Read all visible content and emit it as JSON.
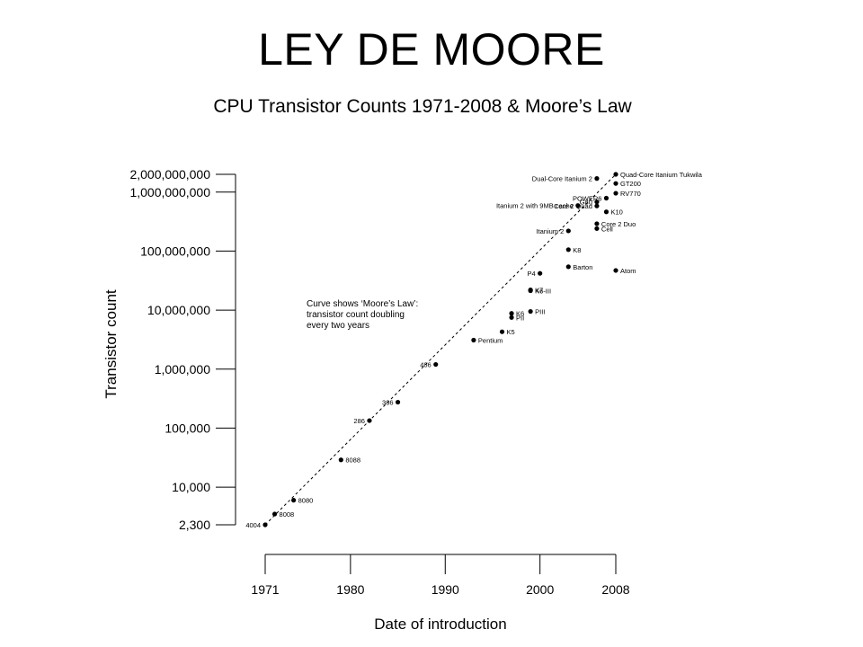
{
  "slide": {
    "title": "LEY DE MOORE"
  },
  "chart_data": {
    "type": "scatter",
    "title": "CPU Transistor Counts 1971-2008 & Moore’s Law",
    "xlabel": "Date of introduction",
    "ylabel": "Transistor count",
    "xscale": "linear",
    "yscale": "log",
    "xlim": [
      1971,
      2008
    ],
    "ylim": [
      2300,
      2000000000
    ],
    "x_ticks": [
      1971,
      1980,
      1990,
      2000,
      2008
    ],
    "x_tick_labels": [
      "1971",
      "1980",
      "1990",
      "2000",
      "2008"
    ],
    "y_ticks": [
      2300,
      10000,
      100000,
      1000000,
      10000000,
      100000000,
      1000000000,
      2000000000
    ],
    "y_tick_labels": [
      "2,300",
      "10,000",
      "100,000",
      "1,000,000",
      "10,000,000",
      "100,000,000",
      "1,000,000,000",
      "2,000,000,000"
    ],
    "grid": false,
    "annotation": [
      "Curve shows ‘Moore’s Law’:",
      "transistor count doubling",
      "every two years"
    ],
    "trend_line": {
      "style": "dashed",
      "from": [
        1971,
        2300
      ],
      "to": [
        2008,
        2000000000
      ]
    },
    "points": [
      {
        "label": "4004",
        "x": 1971,
        "y": 2300,
        "side": "left"
      },
      {
        "label": "8008",
        "x": 1972,
        "y": 3500,
        "side": "right"
      },
      {
        "label": "8080",
        "x": 1974,
        "y": 6000,
        "side": "right"
      },
      {
        "label": "8088",
        "x": 1979,
        "y": 29000,
        "side": "right"
      },
      {
        "label": "286",
        "x": 1982,
        "y": 134000,
        "side": "left"
      },
      {
        "label": "386",
        "x": 1985,
        "y": 275000,
        "side": "left"
      },
      {
        "label": "486",
        "x": 1989,
        "y": 1200000,
        "side": "left"
      },
      {
        "label": "Pentium",
        "x": 1993,
        "y": 3100000,
        "side": "right"
      },
      {
        "label": "K5",
        "x": 1996,
        "y": 4300000,
        "side": "right"
      },
      {
        "label": "K6",
        "x": 1997,
        "y": 8800000,
        "side": "right"
      },
      {
        "label": "PII",
        "x": 1997,
        "y": 7500000,
        "side": "right"
      },
      {
        "label": "PIII",
        "x": 1999,
        "y": 9500000,
        "side": "right"
      },
      {
        "label": "K7",
        "x": 1999,
        "y": 22000000,
        "side": "right"
      },
      {
        "label": "K6-III",
        "x": 1999,
        "y": 21300000,
        "side": "right"
      },
      {
        "label": "P4",
        "x": 2000,
        "y": 42000000,
        "side": "left"
      },
      {
        "label": "Barton",
        "x": 2003,
        "y": 54300000,
        "side": "right"
      },
      {
        "label": "K8",
        "x": 2003,
        "y": 105900000,
        "side": "right"
      },
      {
        "label": "Itanium 2",
        "x": 2003,
        "y": 220000000,
        "side": "left"
      },
      {
        "label": "Itanium 2 with 9MB cache",
        "x": 2004,
        "y": 592000000,
        "side": "left"
      },
      {
        "label": "Core 2 Duo",
        "x": 2006,
        "y": 291000000,
        "side": "right"
      },
      {
        "label": "Cell",
        "x": 2006,
        "y": 241000000,
        "side": "right"
      },
      {
        "label": "Core 2 Quad",
        "x": 2006,
        "y": 582000000,
        "side": "left"
      },
      {
        "label": "G80",
        "x": 2006,
        "y": 681000000,
        "side": "left"
      },
      {
        "label": "K10",
        "x": 2007,
        "y": 463000000,
        "side": "right"
      },
      {
        "label": "POWER6",
        "x": 2007,
        "y": 789000000,
        "side": "left"
      },
      {
        "label": "Dual-Core Itanium 2",
        "x": 2006,
        "y": 1700000000,
        "side": "left"
      },
      {
        "label": "RV770",
        "x": 2008,
        "y": 956000000,
        "side": "right"
      },
      {
        "label": "GT200",
        "x": 2008,
        "y": 1400000000,
        "side": "right"
      },
      {
        "label": "Quad-Core Itanium Tukwila",
        "x": 2008,
        "y": 2000000000,
        "side": "right"
      },
      {
        "label": "Atom",
        "x": 2008,
        "y": 47000000,
        "side": "right"
      }
    ]
  }
}
